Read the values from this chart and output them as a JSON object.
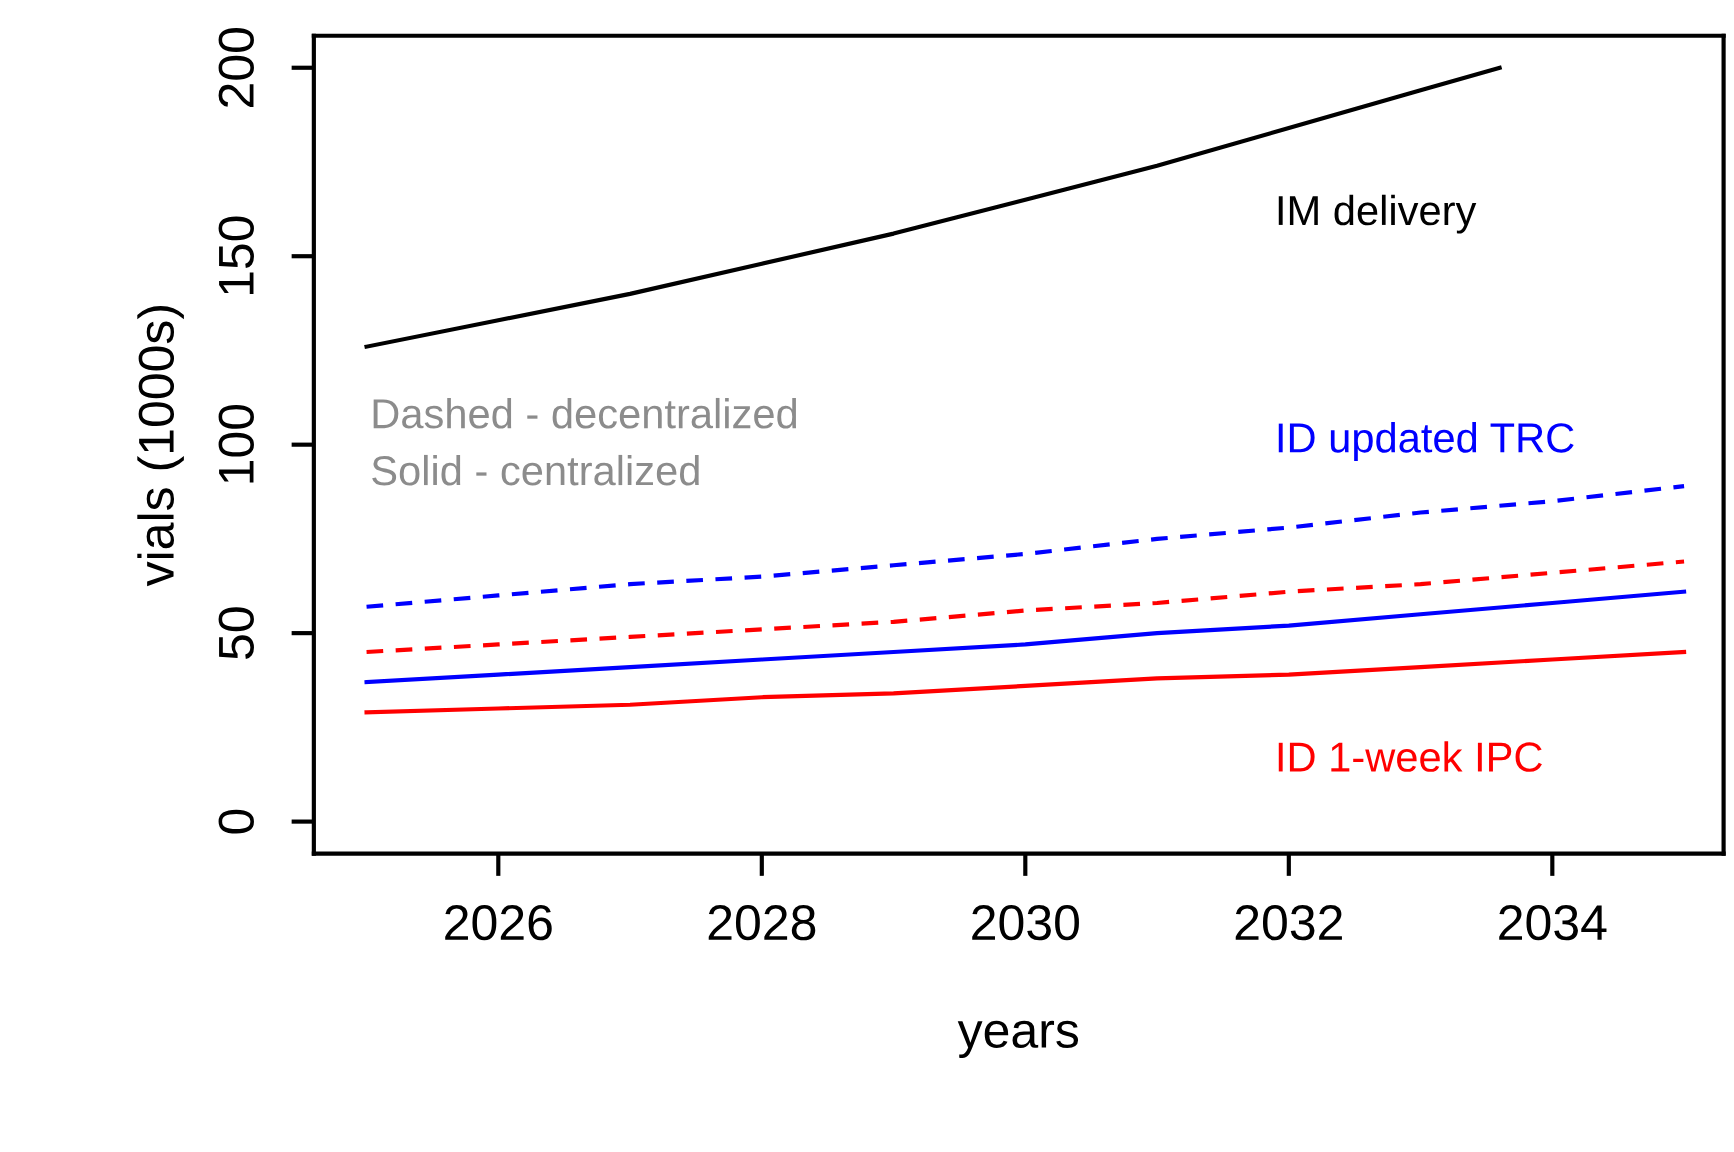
{
  "chart_data": {
    "type": "line",
    "xlabel": "years",
    "ylabel": "vials (1000s)",
    "x": [
      2025,
      2026,
      2027,
      2028,
      2029,
      2030,
      2031,
      2032,
      2033,
      2034,
      2035
    ],
    "series": [
      {
        "name": "IM delivery",
        "color": "#000000",
        "line_style": "solid",
        "x": [
          2025,
          2026,
          2027,
          2028,
          2029,
          2030,
          2031,
          2032,
          2033,
          2033.6
        ],
        "values": [
          126,
          133,
          140,
          148,
          156,
          165,
          174,
          184,
          194,
          200
        ]
      },
      {
        "name": "ID updated TRC",
        "color": "#0000ff",
        "line_style": "dashed",
        "values": [
          57,
          60,
          63,
          65,
          68,
          71,
          75,
          78,
          82,
          85,
          89
        ]
      },
      {
        "color": "#ff0000",
        "line_style": "dashed",
        "values": [
          45,
          47,
          49,
          51,
          53,
          56,
          58,
          61,
          63,
          66,
          69
        ]
      },
      {
        "color": "#0000ff",
        "line_style": "solid",
        "values": [
          37,
          39,
          41,
          43,
          45,
          47,
          50,
          52,
          55,
          58,
          61
        ]
      },
      {
        "name": "ID 1-week IPC",
        "color": "#ff0000",
        "line_style": "solid",
        "values": [
          29,
          30,
          31,
          33,
          34,
          36,
          38,
          39,
          41,
          43,
          45
        ]
      }
    ],
    "annotations": [
      "Dashed - decentralized\nSolid - centralized"
    ],
    "xlim": [
      2024.6,
      2035.3
    ],
    "ylim": [
      -8.5,
      208.5
    ],
    "xticks": [
      2026,
      2028,
      2030,
      2032,
      2034
    ],
    "yticks": [
      0,
      50,
      100,
      150,
      200
    ],
    "grid": false,
    "legend": false,
    "marker": "none"
  }
}
